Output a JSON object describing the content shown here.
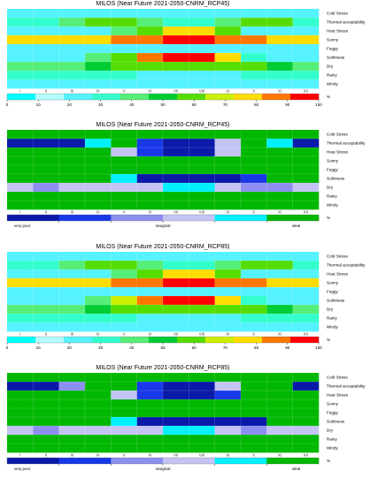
{
  "chart_data": [
    {
      "type": "heatmap",
      "title": "MILOS (Near Future 2021-2050-CNRM_RCP45)",
      "scale": "continuous",
      "months": [
        "I",
        "II",
        "III",
        "IV",
        "V",
        "VI",
        "VII",
        "VIII",
        "IX",
        "X",
        "XI",
        "XII"
      ],
      "rows": [
        "Cold Stress",
        "Thermal acceptability",
        "Heat Stress",
        "Sunny",
        "Foggy",
        "Sultriness",
        "Dry",
        "Rainy",
        "Windy"
      ],
      "values": [
        [
          20,
          20,
          20,
          20,
          20,
          20,
          20,
          20,
          20,
          20,
          20,
          20
        ],
        [
          28,
          28,
          35,
          60,
          60,
          40,
          28,
          28,
          40,
          60,
          60,
          28
        ],
        [
          20,
          20,
          20,
          20,
          38,
          55,
          75,
          75,
          55,
          20,
          20,
          20
        ],
        [
          78,
          78,
          78,
          82,
          88,
          90,
          95,
          95,
          90,
          85,
          78,
          78
        ],
        [
          20,
          20,
          20,
          20,
          20,
          20,
          20,
          20,
          20,
          20,
          20,
          20
        ],
        [
          20,
          20,
          20,
          35,
          60,
          90,
          95,
          95,
          75,
          30,
          20,
          20
        ],
        [
          38,
          38,
          38,
          45,
          55,
          62,
          62,
          62,
          60,
          55,
          45,
          38
        ],
        [
          30,
          30,
          30,
          28,
          26,
          24,
          22,
          22,
          24,
          28,
          30,
          30
        ],
        [
          22,
          22,
          22,
          22,
          22,
          22,
          22,
          22,
          22,
          22,
          22,
          22
        ]
      ],
      "colorbar": {
        "ticks": [
          0,
          10,
          20,
          30,
          40,
          50,
          60,
          70,
          80,
          90,
          100
        ],
        "unit": "%"
      }
    },
    {
      "type": "heatmap",
      "title": "MILOS (Near Future 2021-2050-CNRM_RCP45)",
      "scale": "categorical",
      "months": [
        "I",
        "II",
        "III",
        "IV",
        "V",
        "VI",
        "VII",
        "VIII",
        "IX",
        "X",
        "XI",
        "XII"
      ],
      "rows": [
        "Cold Stress",
        "Thermal acceptability",
        "Heat Stress",
        "Sunny",
        "Foggy",
        "Sultriness",
        "Dry",
        "Rainy",
        "Windy"
      ],
      "values": [
        [
          6,
          6,
          6,
          6,
          6,
          6,
          6,
          6,
          6,
          6,
          6,
          6
        ],
        [
          1,
          1,
          1,
          5,
          6,
          2,
          1,
          1,
          4,
          6,
          5,
          1
        ],
        [
          6,
          6,
          6,
          6,
          4,
          2,
          1,
          1,
          4,
          6,
          6,
          6
        ],
        [
          6,
          6,
          6,
          6,
          6,
          6,
          6,
          6,
          6,
          6,
          6,
          6
        ],
        [
          6,
          6,
          6,
          6,
          6,
          6,
          6,
          6,
          6,
          6,
          6,
          6
        ],
        [
          6,
          6,
          6,
          6,
          5,
          1,
          1,
          1,
          1,
          2,
          6,
          6
        ],
        [
          4,
          3,
          4,
          4,
          4,
          4,
          5,
          5,
          4,
          3,
          3,
          4
        ],
        [
          6,
          6,
          6,
          6,
          6,
          6,
          6,
          6,
          6,
          6,
          6,
          6
        ],
        [
          6,
          6,
          6,
          6,
          6,
          6,
          6,
          6,
          6,
          6,
          6,
          6
        ]
      ],
      "legend": {
        "labels": [
          "very poor",
          "marginal",
          "ideal"
        ],
        "unit": "%"
      }
    },
    {
      "type": "heatmap",
      "title": "MILOS (Near Future 2021-2050-CNRM_RCP85)",
      "scale": "continuous",
      "months": [
        "I",
        "II",
        "III",
        "IV",
        "V",
        "VI",
        "VII",
        "VIII",
        "IX",
        "X",
        "XI",
        "XII"
      ],
      "rows": [
        "Cold Stress",
        "Thermal acceptability",
        "Heat Stress",
        "Sunny",
        "Foggy",
        "Sultriness",
        "Dry",
        "Rainy",
        "Windy"
      ],
      "values": [
        [
          20,
          20,
          20,
          20,
          20,
          20,
          20,
          20,
          20,
          20,
          20,
          20
        ],
        [
          28,
          28,
          35,
          60,
          60,
          40,
          28,
          28,
          40,
          60,
          60,
          28
        ],
        [
          20,
          20,
          20,
          20,
          40,
          58,
          78,
          78,
          55,
          20,
          20,
          20
        ],
        [
          78,
          78,
          78,
          82,
          88,
          90,
          95,
          95,
          90,
          85,
          78,
          78
        ],
        [
          20,
          20,
          20,
          20,
          20,
          20,
          20,
          20,
          20,
          20,
          20,
          20
        ],
        [
          20,
          20,
          20,
          40,
          70,
          92,
          95,
          95,
          80,
          30,
          20,
          20
        ],
        [
          38,
          38,
          40,
          45,
          55,
          62,
          62,
          62,
          60,
          55,
          45,
          38
        ],
        [
          30,
          30,
          30,
          28,
          26,
          24,
          22,
          22,
          24,
          28,
          30,
          30
        ],
        [
          22,
          22,
          22,
          22,
          22,
          22,
          22,
          22,
          22,
          22,
          22,
          22
        ]
      ],
      "colorbar": {
        "ticks": [
          0,
          10,
          20,
          30,
          40,
          50,
          60,
          70,
          80,
          90,
          100
        ],
        "unit": "%"
      }
    },
    {
      "type": "heatmap",
      "title": "MILOS (Near Future 2021-2050-CNRM_RCP85)",
      "scale": "categorical",
      "months": [
        "I",
        "II",
        "III",
        "IV",
        "V",
        "VI",
        "VII",
        "VIII",
        "IX",
        "X",
        "XI",
        "XII"
      ],
      "rows": [
        "Cold Stress",
        "Thermal acceptability",
        "Heat Stress",
        "Sunny",
        "Foggy",
        "Sultriness",
        "Dry",
        "Rainy",
        "Windy"
      ],
      "values": [
        [
          6,
          6,
          6,
          6,
          6,
          6,
          6,
          6,
          6,
          6,
          6,
          6
        ],
        [
          1,
          1,
          3,
          6,
          6,
          2,
          1,
          1,
          4,
          6,
          6,
          1
        ],
        [
          6,
          6,
          6,
          6,
          4,
          2,
          1,
          1,
          2,
          6,
          6,
          6
        ],
        [
          6,
          6,
          6,
          6,
          6,
          6,
          6,
          6,
          6,
          6,
          6,
          6
        ],
        [
          6,
          6,
          6,
          6,
          6,
          6,
          6,
          6,
          6,
          6,
          6,
          6
        ],
        [
          6,
          6,
          6,
          6,
          5,
          1,
          1,
          1,
          1,
          1,
          6,
          6
        ],
        [
          4,
          3,
          4,
          4,
          4,
          4,
          5,
          5,
          4,
          3,
          4,
          4
        ],
        [
          6,
          6,
          6,
          6,
          6,
          6,
          6,
          6,
          6,
          6,
          6,
          6
        ],
        [
          6,
          6,
          6,
          6,
          6,
          6,
          6,
          6,
          6,
          6,
          6,
          6
        ]
      ],
      "legend": {
        "labels": [
          "very poor",
          "marginal",
          "ideal"
        ],
        "unit": "%"
      }
    }
  ],
  "colors": {
    "categorical": [
      "#0a1aa8",
      "#1838e8",
      "#8c8ef0",
      "#c4c4f4",
      "#00f0ff",
      "#00b800"
    ],
    "continuous": [
      "#00ffff",
      "#b3ffff",
      "#55f2ff",
      "#33ffcc",
      "#55ee77",
      "#00cc33",
      "#55dd00",
      "#ccee00",
      "#ffdd00",
      "#ff7700",
      "#ff0000"
    ]
  }
}
